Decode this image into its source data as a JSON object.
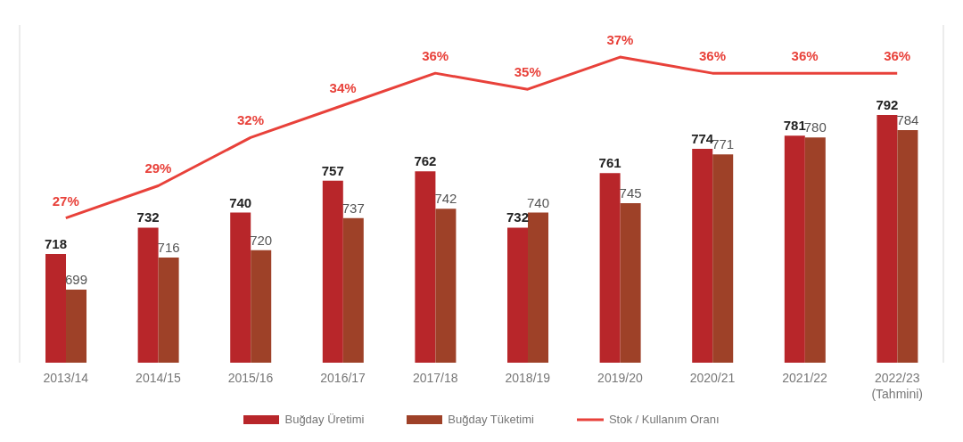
{
  "chart_data": {
    "type": "bar",
    "categories": [
      "2013/14",
      "2014/15",
      "2015/16",
      "2016/17",
      "2017/18",
      "2018/19",
      "2019/20",
      "2020/21",
      "2021/22",
      "2022/23\n(Tahmini)"
    ],
    "series": [
      {
        "name": "Buğday Üretimi",
        "color": "#b8262a",
        "values": [
          718,
          732,
          740,
          757,
          762,
          732,
          761,
          774,
          781,
          792
        ]
      },
      {
        "name": "Buğday Tüketimi",
        "color": "#9e4128",
        "values": [
          699,
          716,
          720,
          737,
          742,
          740,
          745,
          771,
          780,
          784
        ]
      },
      {
        "name": "Stok / Kullanım Oranı",
        "type": "line",
        "axis": "y2",
        "color": "#e8413a",
        "values": [
          27,
          29,
          32,
          34,
          36,
          35,
          37,
          36,
          36,
          36
        ],
        "value_labels": [
          "27%",
          "29%",
          "32%",
          "34%",
          "36%",
          "35%",
          "37%",
          "36%",
          "36%",
          "36%"
        ]
      }
    ],
    "ylim": [
      660,
      840
    ],
    "y2lim": [
      18,
      39
    ],
    "data_labels": true,
    "legend": "bottom",
    "grid": false,
    "marker": "none",
    "line_style": "solid"
  }
}
